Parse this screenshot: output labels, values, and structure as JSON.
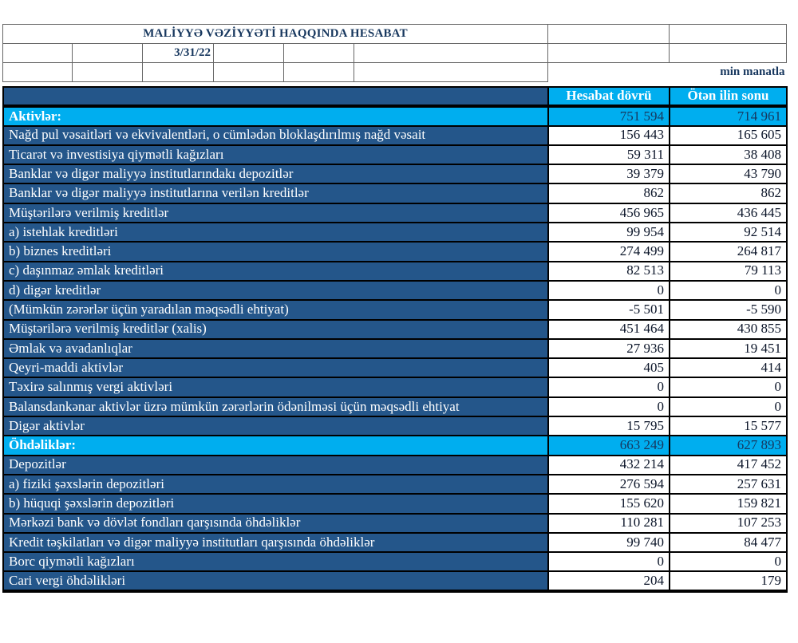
{
  "report": {
    "title": "MALİYYƏ VƏZİYYƏTİ HAQQINDA HESABAT",
    "date": "3/31/22",
    "unit_note": "min manatla"
  },
  "table": {
    "columns": [
      "Hesabat dövrü",
      "Ötən ilin sonu"
    ],
    "rows": [
      {
        "label": "Aktivlər:",
        "current": "751 594",
        "previous": "714 961",
        "type": "section"
      },
      {
        "label": "Nağd pul vəsaitləri və  ekvivalentləri, o cümlədən bloklaşdırılmış nağd vəsait",
        "current": "156 443",
        "previous": "165 605",
        "type": "item"
      },
      {
        "label": "Ticarət və investisiya qiymətli kağızları",
        "current": "59 311",
        "previous": "38 408",
        "type": "item"
      },
      {
        "label": "Banklar və digər maliyyə institutlarındakı depozitlər",
        "current": "39 379",
        "previous": "43 790",
        "type": "item"
      },
      {
        "label": "Banklar və digər maliyyə institutlarına verilən kreditlər",
        "current": "862",
        "previous": "862",
        "type": "item"
      },
      {
        "label": "Müştərilərə verilmiş kreditlər",
        "current": "456 965",
        "previous": "436 445",
        "type": "item"
      },
      {
        "label": "a) istehlak kreditləri",
        "current": "99 954",
        "previous": "92 514",
        "type": "item"
      },
      {
        "label": "b) biznes kreditləri",
        "current": "274 499",
        "previous": "264 817",
        "type": "item"
      },
      {
        "label": "c) daşınmaz əmlak kreditləri",
        "current": "82 513",
        "previous": "79 113",
        "type": "item"
      },
      {
        "label": "d) digər kreditlər",
        "current": "0",
        "previous": "0",
        "type": "item"
      },
      {
        "label": "(Mümkün zərərlər üçün yaradılan məqsədli ehtiyat)",
        "current": "-5 501",
        "previous": "-5 590",
        "type": "item"
      },
      {
        "label": "Müştərilərə verilmiş kreditlər (xalis)",
        "current": "451 464",
        "previous": "430 855",
        "type": "item"
      },
      {
        "label": "Əmlak və avadanlıqlar",
        "current": "27 936",
        "previous": "19 451",
        "type": "item"
      },
      {
        "label": "Qeyri-maddi aktivlər",
        "current": "405",
        "previous": "414",
        "type": "item"
      },
      {
        "label": "Təxirə salınmış vergi aktivləri",
        "current": "0",
        "previous": "0",
        "type": "item"
      },
      {
        "label": "Balansdankənar aktivlər üzrə mümkün zərərlərin ödənilməsi üçün məqsədli ehtiyat",
        "current": "0",
        "previous": "0",
        "type": "item"
      },
      {
        "label": "Digər aktivlər",
        "current": "15 795",
        "previous": "15 577",
        "type": "item"
      },
      {
        "label": "Öhdəliklər:",
        "current": "663 249",
        "previous": "627 893",
        "type": "section"
      },
      {
        "label": "Depozitlər",
        "current": "432 214",
        "previous": "417 452",
        "type": "item"
      },
      {
        "label": "a) fiziki şəxslərin depozitləri",
        "current": "276 594",
        "previous": "257 631",
        "type": "item"
      },
      {
        "label": "b) hüquqi şəxslərin depozitləri",
        "current": "155 620",
        "previous": "159 821",
        "type": "item"
      },
      {
        "label": "Mərkəzi bank və dövlət fondları qarşısında öhdəliklər",
        "current": "110 281",
        "previous": "107 253",
        "type": "item"
      },
      {
        "label": "Kredit təşkilatları və digər maliyyə institutları qarşısında öhdəliklər",
        "current": "99 740",
        "previous": "84 477",
        "type": "item"
      },
      {
        "label": "Borc qiymətli kağızları",
        "current": "0",
        "previous": "0",
        "type": "item"
      },
      {
        "label": "Cari vergi öhdəlikləri",
        "current": "204",
        "previous": "179",
        "type": "item"
      }
    ]
  },
  "colors": {
    "row_navy": "#24568A",
    "cyan": "#00AEEF",
    "title_navy": "#17375E",
    "grid_line": "#666666",
    "value_text": "#0A1428"
  }
}
